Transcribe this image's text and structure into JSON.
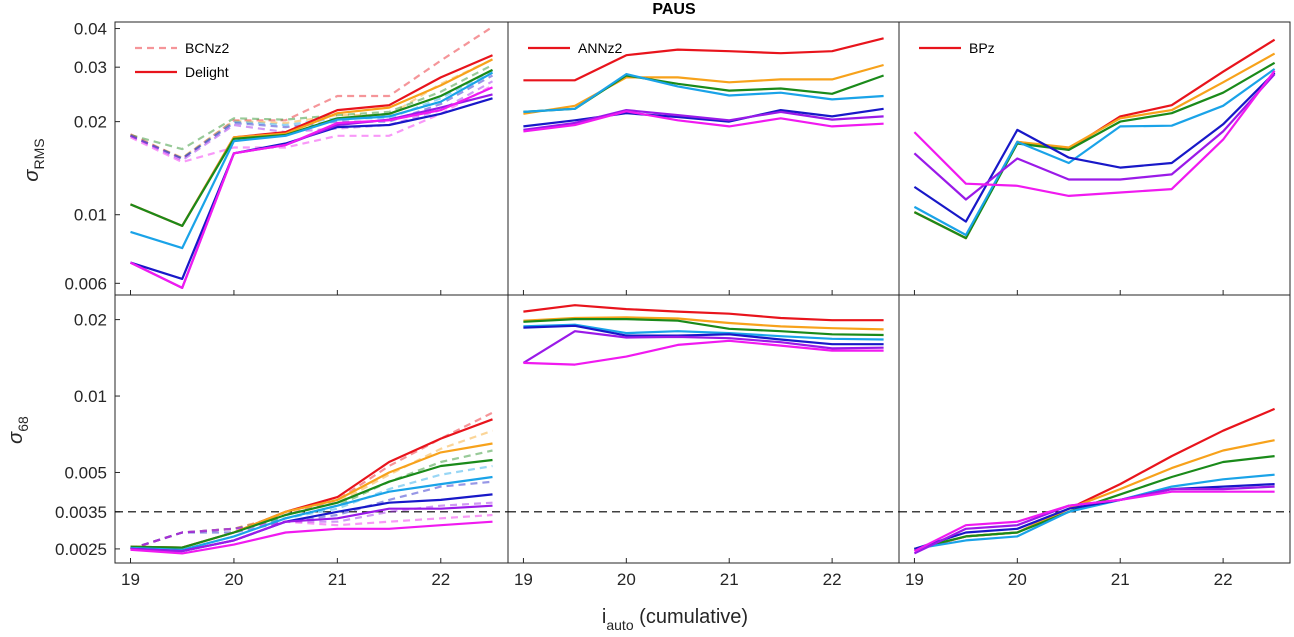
{
  "title": "PAUS",
  "xlabel": {
    "main": "i",
    "sub": "auto",
    "rest": " (cumulative)"
  },
  "ylabels": {
    "top": {
      "main": "σ",
      "sub": "RMS"
    },
    "bottom": {
      "main": "σ",
      "sub": "68"
    }
  },
  "colors": {
    "red": "#e8141c",
    "orange": "#f7a21b",
    "green": "#1a8a1a",
    "cyan": "#1aa3e8",
    "navy": "#1818c8",
    "violet": "#9a1ae8",
    "magenta": "#f01af0"
  },
  "chart_data": [
    {
      "type": "line",
      "panel": "top-left",
      "scale": "log",
      "xlim": [
        18.85,
        22.65
      ],
      "ylim": [
        0.0055,
        0.042
      ],
      "xticks": [
        19,
        20,
        21,
        22
      ],
      "xtick_labels": [
        "19",
        "20",
        "21",
        "22"
      ],
      "yticks": [
        0.006,
        0.01,
        0.02,
        0.03,
        0.04
      ],
      "ytick_labels": [
        "0.006",
        "0.01",
        "0.02",
        "0.03",
        "0.04"
      ],
      "legend": {
        "placement": "top-left",
        "entries": [
          {
            "label": "BCNz2",
            "style": "dashed"
          },
          {
            "label": "Delight",
            "style": "solid"
          }
        ]
      },
      "x": [
        19,
        19.5,
        20,
        20.5,
        21,
        21.5,
        22,
        22.5
      ],
      "series": [
        {
          "color": "red",
          "dashed": true,
          "values": [
            0.0182,
            0.0152,
            0.0202,
            0.0202,
            0.0242,
            0.0242,
            0.0315,
            0.0405
          ]
        },
        {
          "color": "orange",
          "dashed": true,
          "values": [
            0.018,
            0.0153,
            0.0201,
            0.0198,
            0.021,
            0.021,
            0.0265,
            0.0318
          ]
        },
        {
          "color": "green",
          "dashed": true,
          "values": [
            0.0181,
            0.0163,
            0.0205,
            0.0203,
            0.021,
            0.0215,
            0.025,
            0.0305
          ]
        },
        {
          "color": "cyan",
          "dashed": true,
          "values": [
            0.018,
            0.0152,
            0.02,
            0.0195,
            0.0205,
            0.0205,
            0.0238,
            0.0292
          ]
        },
        {
          "color": "navy",
          "dashed": true,
          "values": [
            0.018,
            0.0152,
            0.0198,
            0.0192,
            0.02,
            0.02,
            0.0228,
            0.0282
          ]
        },
        {
          "color": "violet",
          "dashed": true,
          "values": [
            0.018,
            0.015,
            0.0195,
            0.0185,
            0.019,
            0.0195,
            0.0218,
            0.027
          ]
        },
        {
          "color": "magenta",
          "dashed": true,
          "values": [
            0.0178,
            0.0148,
            0.0165,
            0.0165,
            0.018,
            0.018,
            0.0212,
            0.0262
          ]
        },
        {
          "color": "red",
          "dashed": false,
          "values": [
            0.0108,
            0.0092,
            0.0178,
            0.0185,
            0.0218,
            0.0226,
            0.0278,
            0.0328
          ]
        },
        {
          "color": "orange",
          "dashed": false,
          "values": [
            0.0108,
            0.0092,
            0.0178,
            0.0183,
            0.0213,
            0.0222,
            0.0262,
            0.0318
          ]
        },
        {
          "color": "green",
          "dashed": false,
          "values": [
            0.0108,
            0.0092,
            0.0176,
            0.0181,
            0.0205,
            0.0212,
            0.0242,
            0.0294
          ]
        },
        {
          "color": "cyan",
          "dashed": false,
          "values": [
            0.0088,
            0.0078,
            0.0173,
            0.018,
            0.0203,
            0.0208,
            0.0232,
            0.0288
          ]
        },
        {
          "color": "navy",
          "dashed": false,
          "values": [
            0.007,
            0.0062,
            0.0158,
            0.017,
            0.0192,
            0.0195,
            0.0212,
            0.0238
          ]
        },
        {
          "color": "violet",
          "dashed": false,
          "values": [
            0.007,
            0.0058,
            0.0158,
            0.0168,
            0.0195,
            0.0203,
            0.0222,
            0.0245
          ]
        },
        {
          "color": "magenta",
          "dashed": false,
          "values": [
            0.007,
            0.0058,
            0.0158,
            0.0168,
            0.0198,
            0.0202,
            0.0218,
            0.0258
          ]
        }
      ]
    },
    {
      "type": "line",
      "panel": "top-middle",
      "scale": "log",
      "xlim": [
        18.85,
        22.65
      ],
      "ylim": [
        0.0055,
        0.042
      ],
      "xticks": [
        19,
        20,
        21,
        22
      ],
      "legend": {
        "placement": "top-left",
        "entries": [
          {
            "label": "ANNz2",
            "style": "solid"
          }
        ]
      },
      "x": [
        19,
        19.5,
        20,
        20.5,
        21,
        21.5,
        22,
        22.5
      ],
      "series": [
        {
          "color": "red",
          "dashed": false,
          "values": [
            0.0272,
            0.0272,
            0.0328,
            0.0342,
            0.0338,
            0.0333,
            0.0338,
            0.0372
          ]
        },
        {
          "color": "orange",
          "dashed": false,
          "values": [
            0.0212,
            0.0225,
            0.0278,
            0.0278,
            0.0268,
            0.0274,
            0.0274,
            0.0305
          ]
        },
        {
          "color": "green",
          "dashed": false,
          "values": [
            0.0215,
            0.022,
            0.0282,
            0.0265,
            0.0252,
            0.0256,
            0.0246,
            0.0282
          ]
        },
        {
          "color": "cyan",
          "dashed": false,
          "values": [
            0.0215,
            0.022,
            0.0285,
            0.026,
            0.0243,
            0.0248,
            0.0236,
            0.0242
          ]
        },
        {
          "color": "navy",
          "dashed": false,
          "values": [
            0.0193,
            0.0202,
            0.0213,
            0.0207,
            0.02,
            0.0218,
            0.0208,
            0.022
          ]
        },
        {
          "color": "violet",
          "dashed": false,
          "values": [
            0.0188,
            0.0198,
            0.0218,
            0.021,
            0.0202,
            0.0215,
            0.0203,
            0.0208
          ]
        },
        {
          "color": "magenta",
          "dashed": false,
          "values": [
            0.0186,
            0.0195,
            0.0216,
            0.0202,
            0.0193,
            0.0205,
            0.0193,
            0.0197
          ]
        }
      ]
    },
    {
      "type": "line",
      "panel": "top-right",
      "scale": "log",
      "xlim": [
        18.85,
        22.65
      ],
      "ylim": [
        0.0055,
        0.042
      ],
      "xticks": [
        19,
        20,
        21,
        22
      ],
      "legend": {
        "placement": "top-left",
        "entries": [
          {
            "label": "BPz",
            "style": "solid"
          }
        ]
      },
      "x": [
        19,
        19.5,
        20,
        20.5,
        21,
        21.5,
        22,
        22.5
      ],
      "series": [
        {
          "color": "red",
          "dashed": false,
          "values": [
            0.0102,
            0.0084,
            0.0172,
            0.0163,
            0.0208,
            0.0226,
            0.029,
            0.0368
          ]
        },
        {
          "color": "orange",
          "dashed": false,
          "values": [
            0.0102,
            0.0084,
            0.0172,
            0.0165,
            0.0205,
            0.0218,
            0.0268,
            0.0332
          ]
        },
        {
          "color": "green",
          "dashed": false,
          "values": [
            0.0102,
            0.0084,
            0.017,
            0.0162,
            0.02,
            0.0213,
            0.0248,
            0.031
          ]
        },
        {
          "color": "cyan",
          "dashed": false,
          "values": [
            0.0106,
            0.0086,
            0.0172,
            0.0147,
            0.0193,
            0.0194,
            0.0225,
            0.0296
          ]
        },
        {
          "color": "navy",
          "dashed": false,
          "values": [
            0.0123,
            0.0095,
            0.0188,
            0.0153,
            0.0142,
            0.0147,
            0.0196,
            0.0288
          ]
        },
        {
          "color": "violet",
          "dashed": false,
          "values": [
            0.0158,
            0.0112,
            0.0152,
            0.013,
            0.013,
            0.0135,
            0.0186,
            0.0285
          ]
        },
        {
          "color": "magenta",
          "dashed": false,
          "values": [
            0.0185,
            0.0126,
            0.0124,
            0.0115,
            0.0118,
            0.0121,
            0.0175,
            0.0292
          ]
        }
      ]
    },
    {
      "type": "line",
      "panel": "bottom-left",
      "scale": "log",
      "xlim": [
        18.85,
        22.65
      ],
      "ylim": [
        0.0022,
        0.025
      ],
      "xticks": [
        19,
        20,
        21,
        22
      ],
      "xtick_labels": [
        "19",
        "20",
        "21",
        "22"
      ],
      "yticks": [
        0.0025,
        0.0035,
        0.005,
        0.01,
        0.02
      ],
      "ytick_labels": [
        "0.0025",
        "0.0035",
        "0.005",
        "0.01",
        "0.02"
      ],
      "hline": 0.0035,
      "x": [
        19,
        19.5,
        20,
        20.5,
        21,
        21.5,
        22,
        22.5
      ],
      "series": [
        {
          "color": "red",
          "dashed": true,
          "values": [
            0.0025,
            0.0029,
            0.003,
            0.0034,
            0.0039,
            0.0053,
            0.0068,
            0.0086
          ]
        },
        {
          "color": "orange",
          "dashed": true,
          "values": [
            0.0025,
            0.0029,
            0.003,
            0.0034,
            0.0038,
            0.0049,
            0.0062,
            0.0073
          ]
        },
        {
          "color": "green",
          "dashed": true,
          "values": [
            0.0025,
            0.0029,
            0.003,
            0.0033,
            0.0037,
            0.0046,
            0.0055,
            0.0061
          ]
        },
        {
          "color": "cyan",
          "dashed": true,
          "values": [
            0.0025,
            0.0029,
            0.003,
            0.0033,
            0.0036,
            0.0043,
            0.0049,
            0.0053
          ]
        },
        {
          "color": "navy",
          "dashed": true,
          "values": [
            0.0025,
            0.0029,
            0.0029,
            0.0032,
            0.0034,
            0.0039,
            0.0044,
            0.0046
          ]
        },
        {
          "color": "violet",
          "dashed": true,
          "values": [
            0.0025,
            0.0029,
            0.003,
            0.0032,
            0.0032,
            0.0035,
            0.0037,
            0.0038
          ]
        },
        {
          "color": "magenta",
          "dashed": true,
          "values": [
            0.0025,
            0.0029,
            0.003,
            0.0032,
            0.0031,
            0.0032,
            0.0033,
            0.0034
          ]
        },
        {
          "color": "red",
          "dashed": false,
          "values": [
            0.00255,
            0.00253,
            0.0029,
            0.0035,
            0.004,
            0.0055,
            0.0068,
            0.0081
          ]
        },
        {
          "color": "orange",
          "dashed": false,
          "values": [
            0.00255,
            0.00253,
            0.0029,
            0.0035,
            0.0039,
            0.005,
            0.006,
            0.0065
          ]
        },
        {
          "color": "green",
          "dashed": false,
          "values": [
            0.00255,
            0.00253,
            0.0029,
            0.0034,
            0.0038,
            0.0046,
            0.0053,
            0.0056
          ]
        },
        {
          "color": "cyan",
          "dashed": false,
          "values": [
            0.00252,
            0.00248,
            0.0028,
            0.0033,
            0.0037,
            0.0042,
            0.0045,
            0.0048
          ]
        },
        {
          "color": "navy",
          "dashed": false,
          "values": [
            0.0025,
            0.00245,
            0.0027,
            0.0032,
            0.0035,
            0.0038,
            0.0039,
            0.0041
          ]
        },
        {
          "color": "violet",
          "dashed": false,
          "values": [
            0.0025,
            0.00245,
            0.0027,
            0.0032,
            0.0033,
            0.0036,
            0.0036,
            0.0037
          ]
        },
        {
          "color": "magenta",
          "dashed": false,
          "values": [
            0.00248,
            0.0024,
            0.0026,
            0.0029,
            0.003,
            0.003,
            0.0031,
            0.0032
          ]
        }
      ]
    },
    {
      "type": "line",
      "panel": "bottom-middle",
      "scale": "log",
      "xlim": [
        18.85,
        22.65
      ],
      "ylim": [
        0.0022,
        0.025
      ],
      "xticks": [
        19,
        20,
        21,
        22
      ],
      "hline": 0.0035,
      "x": [
        19,
        19.5,
        20,
        20.5,
        21,
        21.5,
        22,
        22.5
      ],
      "series": [
        {
          "color": "red",
          "dashed": false,
          "values": [
            0.0215,
            0.0228,
            0.022,
            0.0215,
            0.0211,
            0.0203,
            0.0199,
            0.0199
          ]
        },
        {
          "color": "orange",
          "dashed": false,
          "values": [
            0.0198,
            0.0203,
            0.0204,
            0.0202,
            0.0194,
            0.0188,
            0.0185,
            0.0183
          ]
        },
        {
          "color": "green",
          "dashed": false,
          "values": [
            0.0196,
            0.0201,
            0.0201,
            0.0198,
            0.0184,
            0.018,
            0.0175,
            0.0174
          ]
        },
        {
          "color": "cyan",
          "dashed": false,
          "values": [
            0.0188,
            0.0191,
            0.0177,
            0.018,
            0.0177,
            0.0172,
            0.0168,
            0.0167
          ]
        },
        {
          "color": "navy",
          "dashed": false,
          "values": [
            0.0186,
            0.0189,
            0.0173,
            0.0173,
            0.0175,
            0.0167,
            0.016,
            0.016
          ]
        },
        {
          "color": "violet",
          "dashed": false,
          "values": [
            0.0135,
            0.018,
            0.017,
            0.0171,
            0.0169,
            0.0163,
            0.0154,
            0.0155
          ]
        },
        {
          "color": "magenta",
          "dashed": false,
          "values": [
            0.0135,
            0.0133,
            0.0143,
            0.0159,
            0.0165,
            0.0158,
            0.0151,
            0.0151
          ]
        }
      ]
    },
    {
      "type": "line",
      "panel": "bottom-right",
      "scale": "log",
      "xlim": [
        18.85,
        22.65
      ],
      "ylim": [
        0.0022,
        0.025
      ],
      "xticks": [
        19,
        20,
        21,
        22
      ],
      "hline": 0.0035,
      "x": [
        19,
        19.5,
        20,
        20.5,
        21,
        21.5,
        22,
        22.5
      ],
      "series": [
        {
          "color": "red",
          "dashed": false,
          "values": [
            0.00248,
            0.0028,
            0.0029,
            0.0036,
            0.0045,
            0.0058,
            0.0073,
            0.0089
          ]
        },
        {
          "color": "orange",
          "dashed": false,
          "values": [
            0.0025,
            0.0028,
            0.0029,
            0.0036,
            0.0043,
            0.0052,
            0.0061,
            0.0067
          ]
        },
        {
          "color": "green",
          "dashed": false,
          "values": [
            0.0025,
            0.0028,
            0.0029,
            0.0035,
            0.0041,
            0.0048,
            0.0055,
            0.0058
          ]
        },
        {
          "color": "cyan",
          "dashed": false,
          "values": [
            0.0025,
            0.0027,
            0.0028,
            0.0035,
            0.0039,
            0.0044,
            0.0047,
            0.0049
          ]
        },
        {
          "color": "navy",
          "dashed": false,
          "values": [
            0.0025,
            0.0029,
            0.003,
            0.0036,
            0.0039,
            0.0043,
            0.0044,
            0.0045
          ]
        },
        {
          "color": "violet",
          "dashed": false,
          "values": [
            0.0024,
            0.003,
            0.0031,
            0.0037,
            0.0039,
            0.0043,
            0.0043,
            0.0044
          ]
        },
        {
          "color": "magenta",
          "dashed": false,
          "values": [
            0.00245,
            0.0031,
            0.0032,
            0.0037,
            0.0039,
            0.0042,
            0.0042,
            0.0042
          ]
        }
      ]
    }
  ]
}
